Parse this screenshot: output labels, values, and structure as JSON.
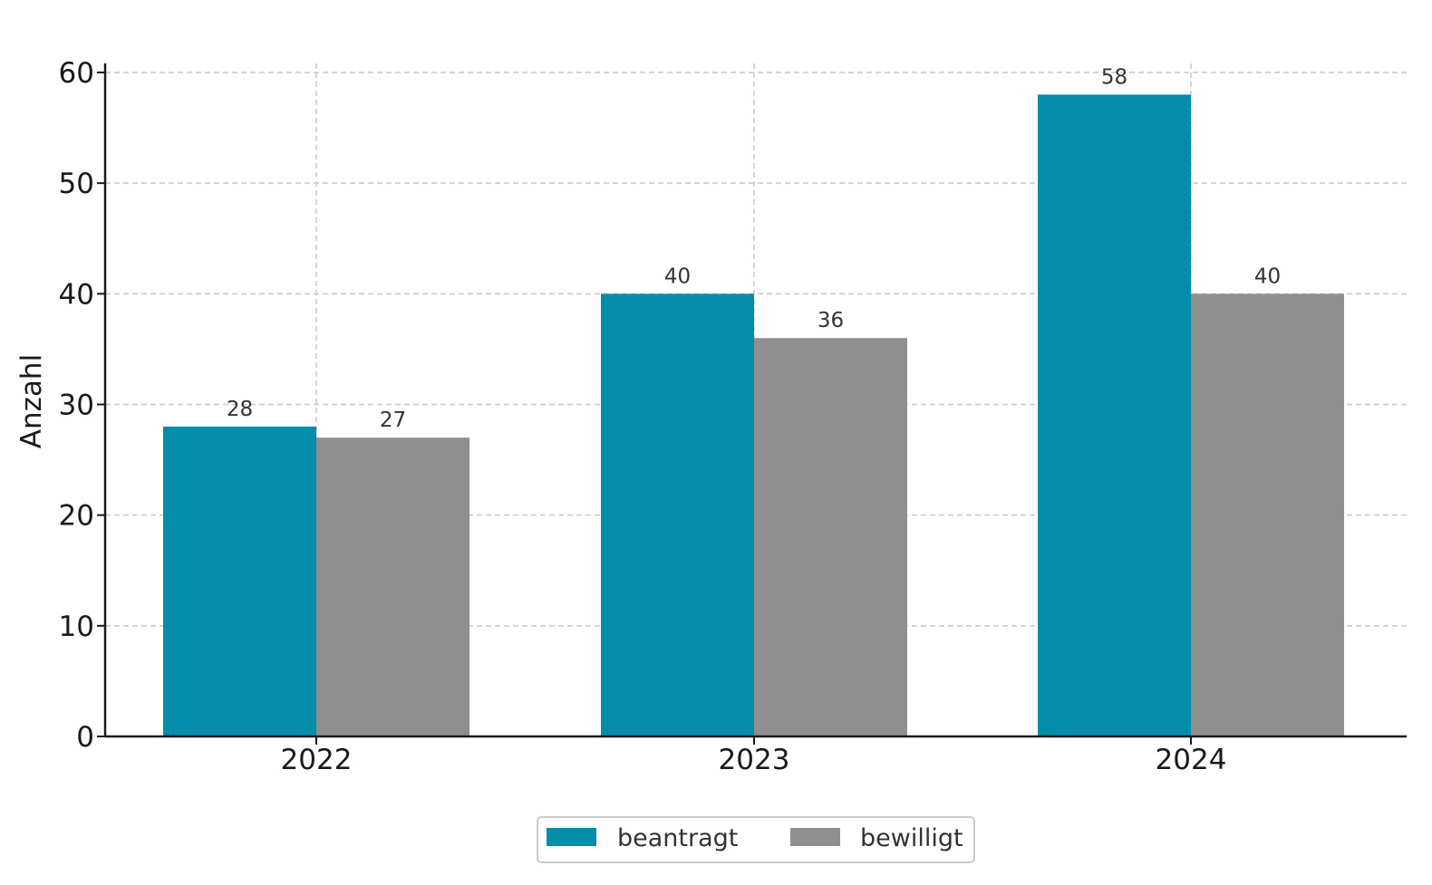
{
  "chart_data": {
    "type": "bar",
    "categories": [
      "2022",
      "2023",
      "2024"
    ],
    "series": [
      {
        "name": "beantragt",
        "values": [
          28,
          40,
          58
        ],
        "color": "#028DAB"
      },
      {
        "name": "bewilligt",
        "values": [
          27,
          36,
          40
        ],
        "color": "#8F8F8F"
      }
    ],
    "data_labels": [
      [
        "28",
        "40",
        "58"
      ],
      [
        "27",
        "36",
        "40"
      ]
    ],
    "title": "",
    "xlabel": "",
    "ylabel": "Anzahl",
    "ylim": [
      0,
      60
    ],
    "yticks": [
      "0",
      "10",
      "20",
      "30",
      "40",
      "50",
      "60"
    ],
    "grid": true,
    "legend": "bottom-center"
  }
}
